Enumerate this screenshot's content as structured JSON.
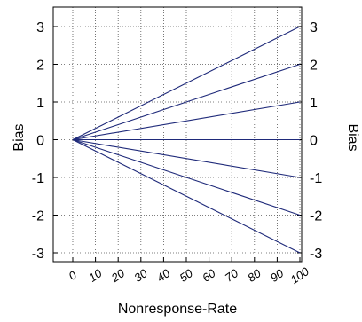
{
  "chart_data": {
    "type": "line",
    "title": "",
    "xlabel": "Nonresponse-Rate",
    "ylabel": "Bias",
    "ylabel_right": "Bias",
    "xlim": [
      0,
      100
    ],
    "ylim": [
      -3,
      3
    ],
    "x_ticks": [
      0,
      10,
      20,
      30,
      40,
      50,
      60,
      70,
      80,
      90,
      100
    ],
    "y_ticks": [
      3,
      2,
      1,
      0,
      -1,
      -2,
      -3
    ],
    "grid": true,
    "line_color": "#1f2a7a",
    "series": [
      {
        "x": [
          0,
          100
        ],
        "values": [
          0,
          3
        ]
      },
      {
        "x": [
          0,
          100
        ],
        "values": [
          0,
          2
        ]
      },
      {
        "x": [
          0,
          100
        ],
        "values": [
          0,
          1
        ]
      },
      {
        "x": [
          0,
          100
        ],
        "values": [
          0,
          0
        ]
      },
      {
        "x": [
          0,
          100
        ],
        "values": [
          0,
          -1
        ]
      },
      {
        "x": [
          0,
          100
        ],
        "values": [
          0,
          -2
        ]
      },
      {
        "x": [
          0,
          100
        ],
        "values": [
          0,
          -3
        ]
      }
    ]
  }
}
